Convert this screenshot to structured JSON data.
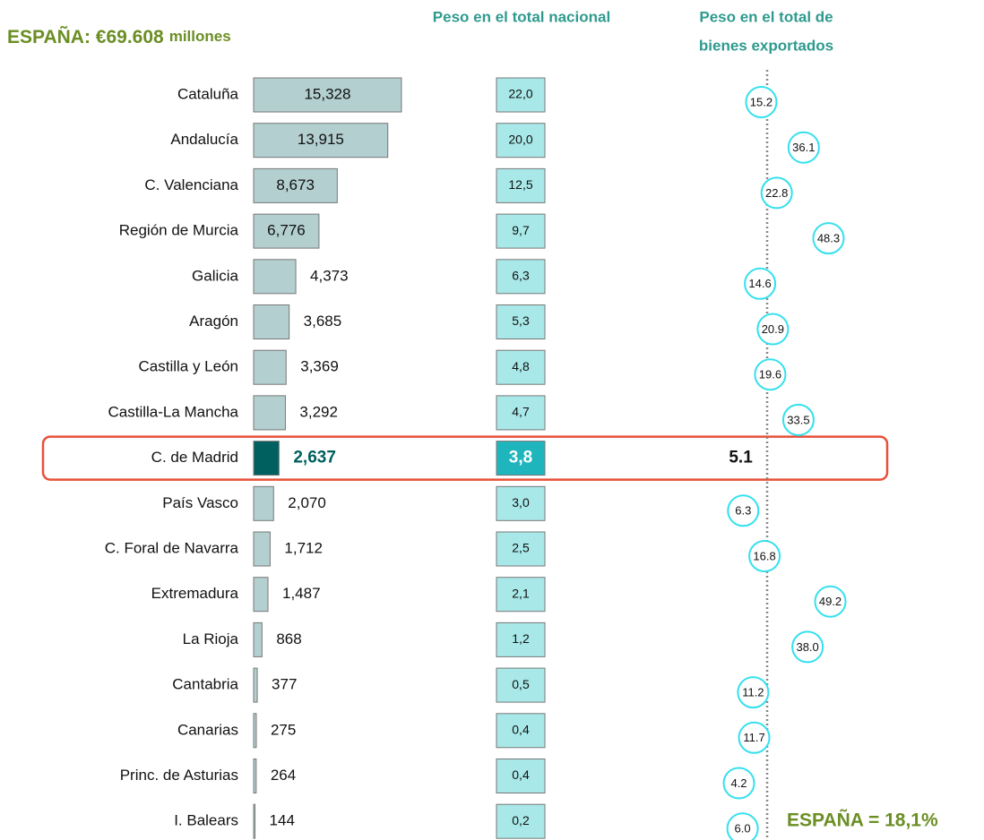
{
  "chart_data": [
    {
      "type": "bar",
      "title": "ESPAÑA: €69.608",
      "title_unit": "millones",
      "categories": [
        "Cataluña",
        "Andalucía",
        "C. Valenciana",
        "Región de Murcia",
        "Galicia",
        "Aragón",
        "Castilla y León",
        "Castilla-La Mancha",
        "C. de Madrid",
        "País Vasco",
        "C. Foral de Navarra",
        "Extremadura",
        "La Rioja",
        "Cantabria",
        "Canarias",
        "Princ. de Asturias",
        "I. Balears"
      ],
      "values": [
        15328,
        13915,
        8673,
        6776,
        4373,
        3685,
        3369,
        3292,
        2637,
        2070,
        1712,
        1487,
        868,
        377,
        275,
        264,
        144
      ],
      "value_labels": [
        "15,328",
        "13,915",
        "8,673",
        "6,776",
        "4,373",
        "3,685",
        "3,369",
        "3,292",
        "2,637",
        "2,070",
        "1,712",
        "1,487",
        "868",
        "377",
        "275",
        "264",
        "144"
      ],
      "color": "#b3cfd0",
      "highlight_color": "#00605f",
      "highlight_index": 8,
      "xlim": [
        0,
        25000
      ]
    },
    {
      "type": "boxes",
      "title": "Peso en el total nacional",
      "values": [
        22.0,
        20.0,
        12.5,
        9.7,
        6.3,
        5.3,
        4.8,
        4.7,
        3.8,
        3.0,
        2.5,
        2.1,
        1.2,
        0.5,
        0.4,
        0.4,
        0.2
      ],
      "value_labels": [
        "22,0",
        "20,0",
        "12,5",
        "9,7",
        "6,3",
        "5,3",
        "4,8",
        "4,7",
        "3,8",
        "3,0",
        "2,5",
        "2,1",
        "1,2",
        "0,5",
        "0,4",
        "0,4",
        "0,2"
      ],
      "color": "#a9e8e8",
      "highlight_color": "#1fb5bd"
    },
    {
      "type": "dot",
      "title": [
        "Peso en el total de",
        "bienes exportados"
      ],
      "values": [
        15.2,
        36.1,
        22.8,
        48.3,
        14.6,
        20.9,
        19.6,
        33.5,
        5.1,
        6.3,
        16.8,
        49.2,
        38.0,
        11.2,
        11.7,
        4.2,
        6.0
      ],
      "value_labels": [
        "15.2",
        "36.1",
        "22.8",
        "48.3",
        "14.6",
        "20.9",
        "19.6",
        "33.5",
        "5.1",
        "6.3",
        "16.8",
        "49.2",
        "38.0",
        "11.2",
        "11.7",
        "4.2",
        "6.0"
      ],
      "color": "#33e0ee",
      "xlim": [
        0,
        60
      ],
      "reference": {
        "value": 18.1,
        "label": "ESPAÑA = 18,1%"
      }
    }
  ]
}
